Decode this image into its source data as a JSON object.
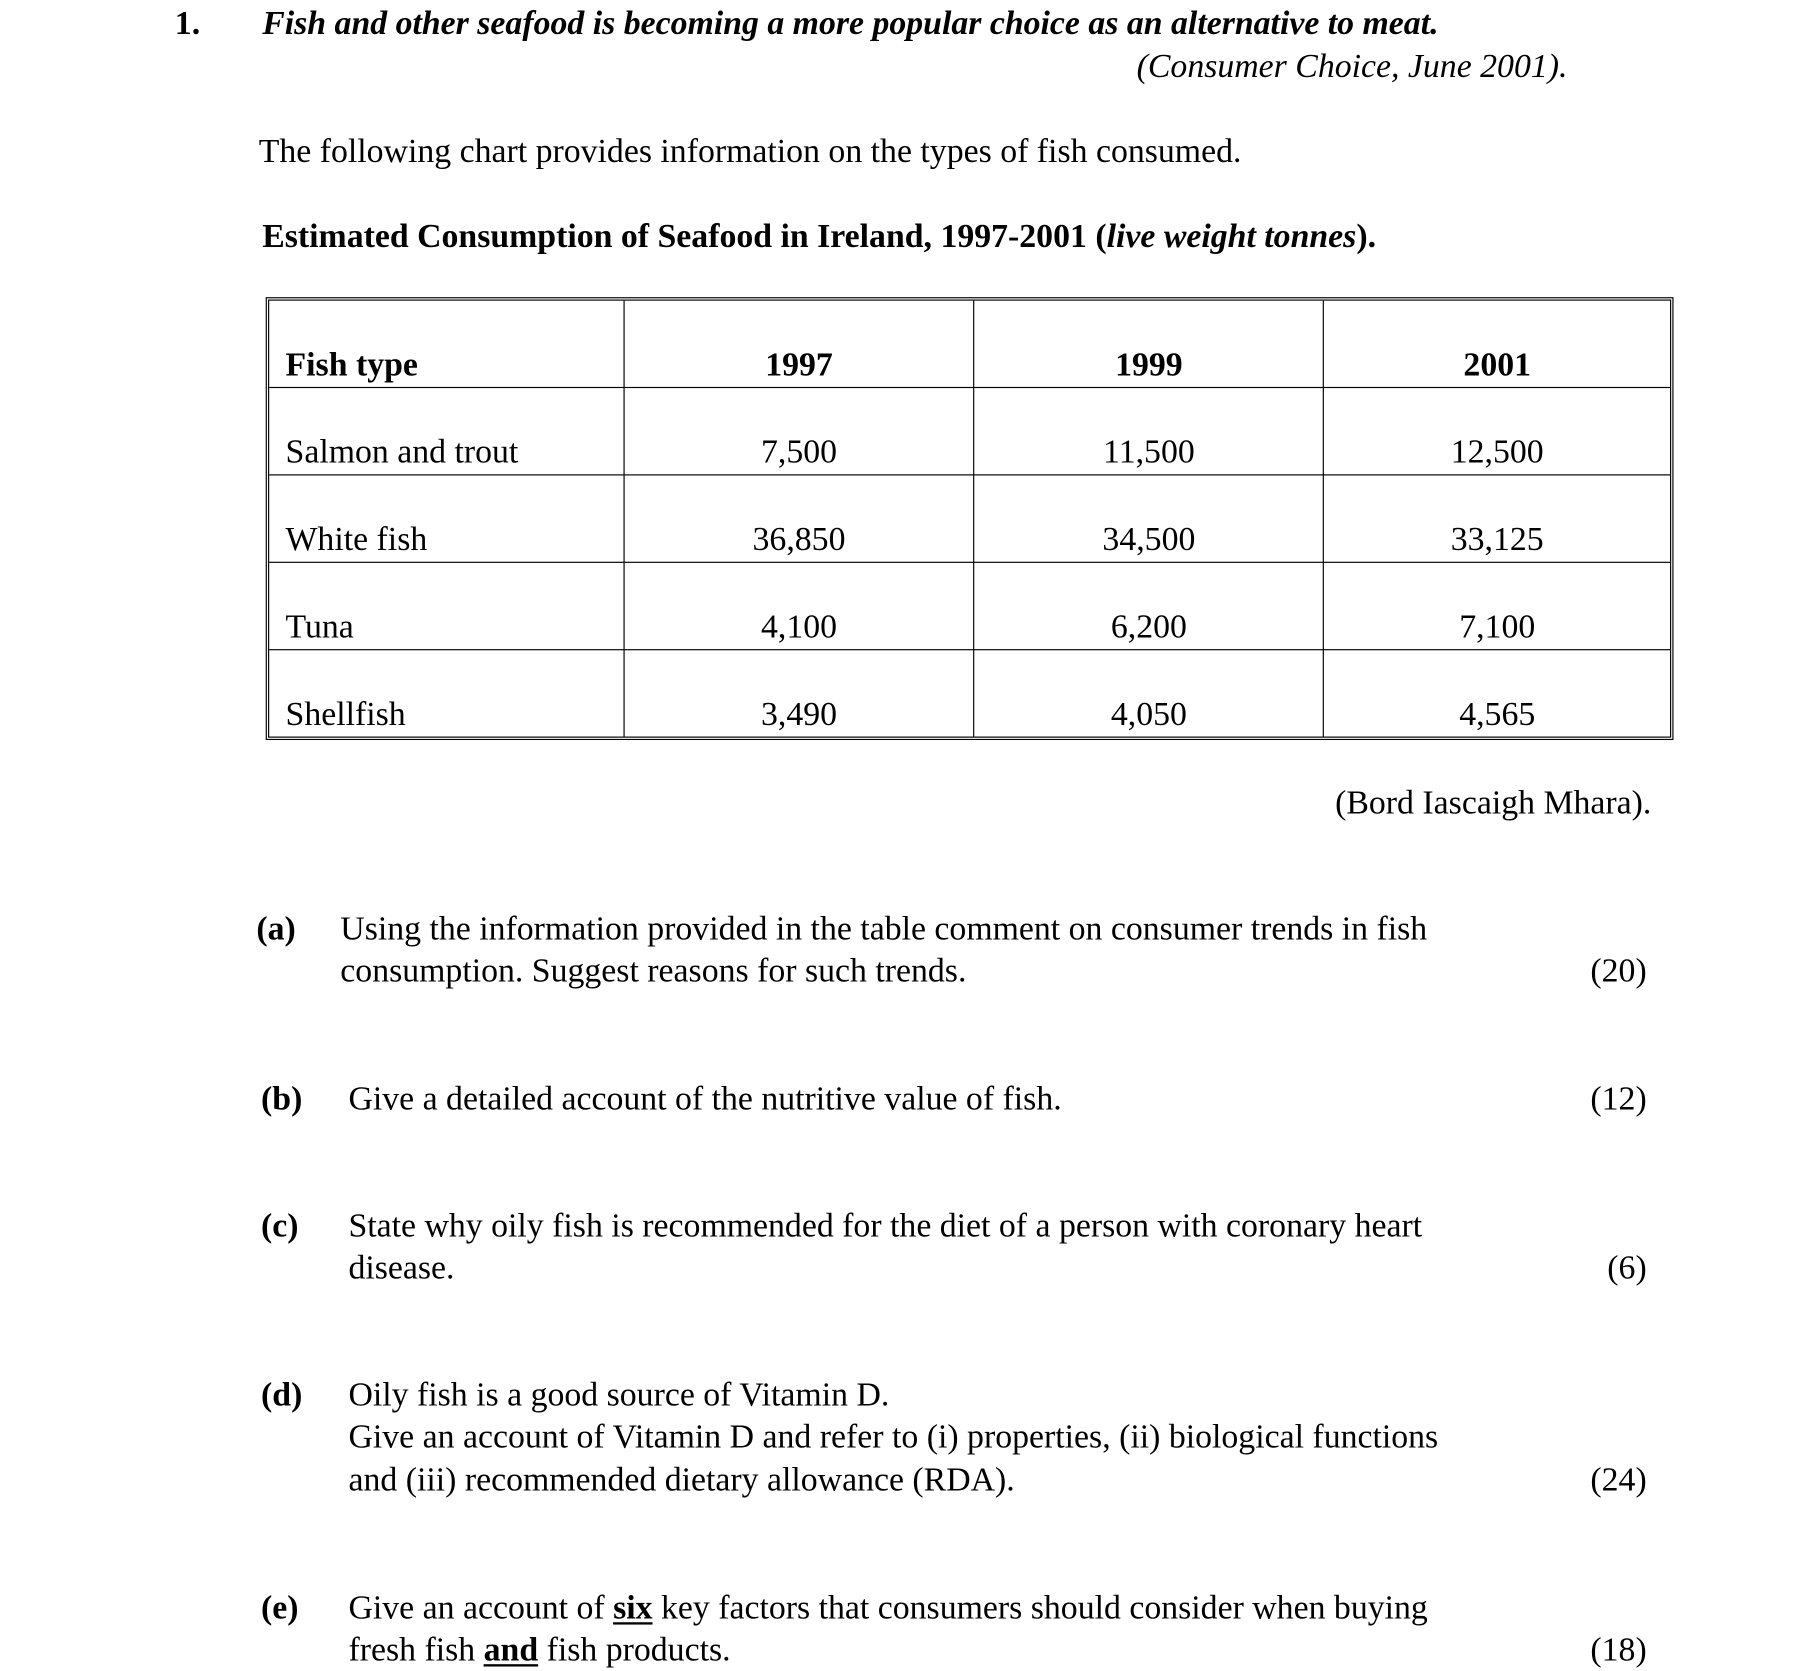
{
  "question_number": "1.",
  "quote": "Fish and other seafood is becoming a more popular choice as an alternative to meat.",
  "quote_source": "(Consumer Choice, June 2001).",
  "intro": "The following chart provides information on the types of fish consumed.",
  "table_title": {
    "main": "Estimated Consumption of Seafood in Ireland, 1997-2001 (",
    "italic": "live weight tonnes",
    "end": ")."
  },
  "table": {
    "headers": [
      "Fish type",
      "1997",
      "1999",
      "2001"
    ],
    "rows": [
      [
        "Salmon and trout",
        "7,500",
        "11,500",
        "12,500"
      ],
      [
        "White fish",
        "36,850",
        "34,500",
        "33,125"
      ],
      [
        "Tuna",
        "4,100",
        "6,200",
        "7,100"
      ],
      [
        "Shellfish",
        "3,490",
        "4,050",
        "4,565"
      ]
    ]
  },
  "table_source": "(Bord Iascaigh Mhara).",
  "parts": {
    "a": {
      "label": "(a)",
      "lines": [
        "Using the information provided in the table comment on consumer trends in fish",
        "consumption.  Suggest reasons for such trends."
      ],
      "marks": "(20)"
    },
    "b": {
      "label": "(b)",
      "lines": [
        "Give a detailed account of the nutritive value of fish."
      ],
      "marks": "(12)"
    },
    "c": {
      "label": "(c)",
      "lines": [
        "State why oily fish is recommended for the diet of a person with coronary heart",
        "disease."
      ],
      "marks": "(6)"
    },
    "d": {
      "label": "(d)",
      "lines": [
        "Oily fish is a good source of Vitamin D.",
        "Give an account of Vitamin D and refer to (i) properties, (ii) biological functions",
        "and (iii) recommended dietary allowance (RDA)."
      ],
      "marks": "(24)"
    },
    "e": {
      "label": "(e)",
      "line1": [
        "Give an account of ",
        "six",
        " key factors that consumers should consider when buying"
      ],
      "line2": [
        "fresh fish ",
        "and",
        " fish products."
      ],
      "marks": "(18)"
    }
  }
}
